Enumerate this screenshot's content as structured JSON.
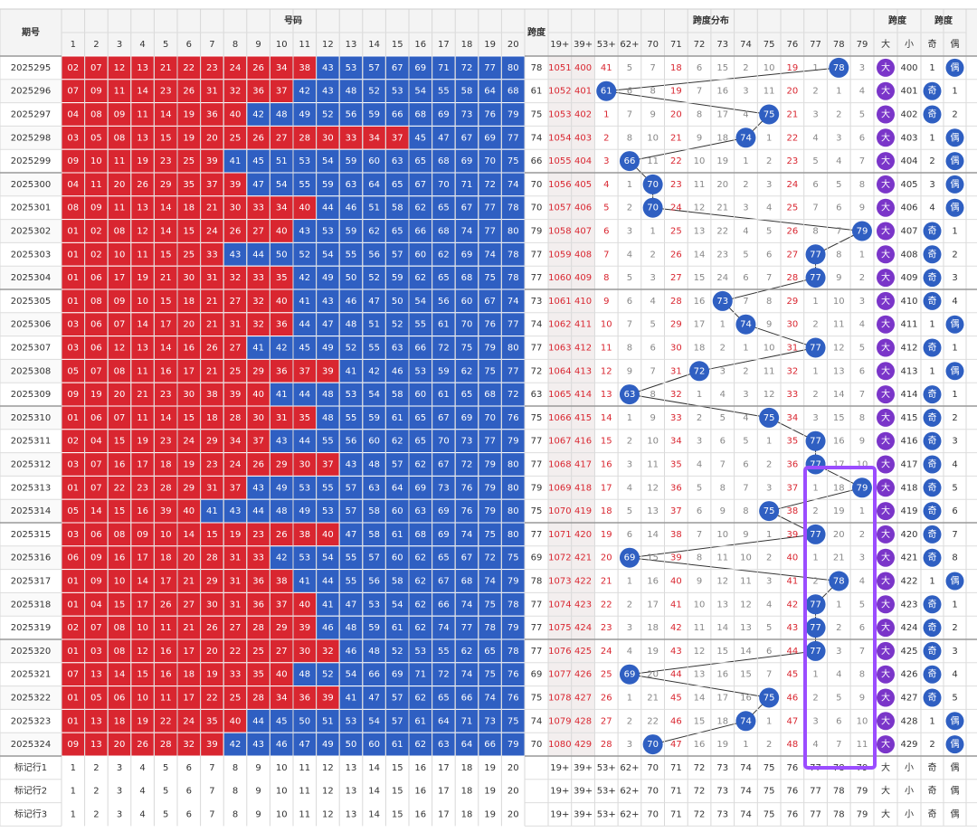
{
  "header": {
    "issue": "期号",
    "numbers": "号码",
    "span": "跨度",
    "dist": "跨度分布",
    "bigsmall": "跨度",
    "oddeven": "跨度",
    "num_cols": [
      1,
      2,
      3,
      4,
      5,
      6,
      7,
      8,
      9,
      10,
      11,
      12,
      13,
      14,
      15,
      16,
      17,
      18,
      19,
      20
    ],
    "dist_cols": [
      "19+",
      "39+",
      "53+",
      "62+",
      "70",
      "71",
      "72",
      "73",
      "74",
      "75",
      "76",
      "77",
      "78",
      "79"
    ],
    "bs_cols": [
      "大",
      "小"
    ],
    "oe_cols": [
      "奇",
      "偶"
    ]
  },
  "rows": [
    {
      "issue": "2025295",
      "numbers": [
        "02",
        "07",
        "12",
        "13",
        "21",
        "22",
        "23",
        "24",
        "26",
        "34",
        "38",
        "43",
        "53",
        "57",
        "67",
        "69",
        "71",
        "72",
        "77",
        "80"
      ],
      "span": 78,
      "dist": [
        1051,
        400,
        41,
        5,
        7,
        18,
        6,
        15,
        2,
        10,
        19,
        1,
        78,
        3
      ],
      "big": "大",
      "small": 400,
      "odd": 1,
      "even": "偶"
    },
    {
      "issue": "2025296",
      "numbers": [
        "07",
        "09",
        "11",
        "14",
        "23",
        "26",
        "31",
        "32",
        "36",
        "37",
        "42",
        "43",
        "48",
        "52",
        "53",
        "54",
        "55",
        "58",
        "64",
        "68"
      ],
      "span": 61,
      "dist": [
        1052,
        401,
        61,
        6,
        8,
        19,
        7,
        16,
        3,
        11,
        20,
        2,
        1,
        4
      ],
      "big": "大",
      "small": 401,
      "odd": "奇",
      "even": 1
    },
    {
      "issue": "2025297",
      "numbers": [
        "04",
        "08",
        "09",
        "11",
        "14",
        "19",
        "36",
        "40",
        "42",
        "48",
        "49",
        "52",
        "56",
        "59",
        "66",
        "68",
        "69",
        "73",
        "76",
        "79"
      ],
      "span": 75,
      "dist": [
        1053,
        402,
        1,
        7,
        9,
        20,
        8,
        17,
        4,
        75,
        21,
        3,
        2,
        5
      ],
      "big": "大",
      "small": 402,
      "odd": "奇",
      "even": 2
    },
    {
      "issue": "2025298",
      "numbers": [
        "03",
        "05",
        "08",
        "13",
        "15",
        "19",
        "20",
        "25",
        "26",
        "27",
        "28",
        "30",
        "33",
        "34",
        "37",
        "45",
        "47",
        "67",
        "69",
        "77"
      ],
      "span": 74,
      "dist": [
        1054,
        403,
        2,
        8,
        10,
        21,
        9,
        18,
        74,
        1,
        22,
        4,
        3,
        6
      ],
      "big": "大",
      "small": 403,
      "odd": 1,
      "even": "偶"
    },
    {
      "issue": "2025299",
      "numbers": [
        "09",
        "10",
        "11",
        "19",
        "23",
        "25",
        "39",
        "41",
        "45",
        "51",
        "53",
        "54",
        "59",
        "60",
        "63",
        "65",
        "68",
        "69",
        "70",
        "75"
      ],
      "span": 66,
      "dist": [
        1055,
        404,
        3,
        66,
        11,
        22,
        10,
        19,
        1,
        2,
        23,
        5,
        4,
        7
      ],
      "big": "大",
      "small": 404,
      "odd": 2,
      "even": "偶"
    },
    {
      "issue": "2025300",
      "numbers": [
        "04",
        "11",
        "20",
        "26",
        "29",
        "35",
        "37",
        "39",
        "47",
        "54",
        "55",
        "59",
        "63",
        "64",
        "65",
        "67",
        "70",
        "71",
        "72",
        "74"
      ],
      "span": 70,
      "dist": [
        1056,
        405,
        4,
        1,
        70,
        23,
        11,
        20,
        2,
        3,
        24,
        6,
        5,
        8
      ],
      "big": "大",
      "small": 405,
      "odd": 3,
      "even": "偶"
    },
    {
      "issue": "2025301",
      "numbers": [
        "08",
        "09",
        "11",
        "13",
        "14",
        "18",
        "21",
        "30",
        "33",
        "34",
        "40",
        "44",
        "46",
        "51",
        "58",
        "62",
        "65",
        "67",
        "77",
        "78"
      ],
      "span": 70,
      "dist": [
        1057,
        406,
        5,
        2,
        70,
        24,
        12,
        21,
        3,
        4,
        25,
        7,
        6,
        9
      ],
      "big": "大",
      "small": 406,
      "odd": 4,
      "even": "偶"
    },
    {
      "issue": "2025302",
      "numbers": [
        "01",
        "02",
        "08",
        "12",
        "14",
        "15",
        "24",
        "26",
        "27",
        "40",
        "43",
        "53",
        "59",
        "62",
        "65",
        "66",
        "68",
        "74",
        "77",
        "80"
      ],
      "span": 79,
      "dist": [
        1058,
        407,
        6,
        3,
        1,
        25,
        13,
        22,
        4,
        5,
        26,
        8,
        7,
        79
      ],
      "big": "大",
      "small": 407,
      "odd": "奇",
      "even": 1
    },
    {
      "issue": "2025303",
      "numbers": [
        "01",
        "02",
        "10",
        "11",
        "15",
        "25",
        "33",
        "43",
        "44",
        "50",
        "52",
        "54",
        "55",
        "56",
        "57",
        "60",
        "62",
        "69",
        "74",
        "78"
      ],
      "span": 77,
      "dist": [
        1059,
        408,
        7,
        4,
        2,
        26,
        14,
        23,
        5,
        6,
        27,
        77,
        8,
        1
      ],
      "big": "大",
      "small": 408,
      "odd": "奇",
      "even": 2
    },
    {
      "issue": "2025304",
      "numbers": [
        "01",
        "06",
        "17",
        "19",
        "21",
        "30",
        "31",
        "32",
        "33",
        "35",
        "42",
        "49",
        "50",
        "52",
        "59",
        "62",
        "65",
        "68",
        "75",
        "78"
      ],
      "span": 77,
      "dist": [
        1060,
        409,
        8,
        5,
        3,
        27,
        15,
        24,
        6,
        7,
        28,
        77,
        9,
        2
      ],
      "big": "大",
      "small": 409,
      "odd": "奇",
      "even": 3
    },
    {
      "issue": "2025305",
      "numbers": [
        "01",
        "08",
        "09",
        "10",
        "15",
        "18",
        "21",
        "27",
        "32",
        "40",
        "41",
        "43",
        "46",
        "47",
        "50",
        "54",
        "56",
        "60",
        "67",
        "74"
      ],
      "span": 73,
      "dist": [
        1061,
        410,
        9,
        6,
        4,
        28,
        16,
        73,
        7,
        8,
        29,
        1,
        10,
        3
      ],
      "big": "大",
      "small": 410,
      "odd": "奇",
      "even": 4
    },
    {
      "issue": "2025306",
      "numbers": [
        "03",
        "06",
        "07",
        "14",
        "17",
        "20",
        "21",
        "31",
        "32",
        "36",
        "44",
        "47",
        "48",
        "51",
        "52",
        "55",
        "61",
        "70",
        "76",
        "77"
      ],
      "span": 74,
      "dist": [
        1062,
        411,
        10,
        7,
        5,
        29,
        17,
        1,
        74,
        9,
        30,
        2,
        11,
        4
      ],
      "big": "大",
      "small": 411,
      "odd": 1,
      "even": "偶"
    },
    {
      "issue": "2025307",
      "numbers": [
        "03",
        "06",
        "12",
        "13",
        "14",
        "16",
        "26",
        "27",
        "41",
        "42",
        "45",
        "49",
        "52",
        "55",
        "63",
        "66",
        "72",
        "75",
        "79",
        "80"
      ],
      "span": 77,
      "dist": [
        1063,
        412,
        11,
        8,
        6,
        30,
        18,
        2,
        1,
        10,
        31,
        77,
        12,
        5
      ],
      "big": "大",
      "small": 412,
      "odd": "奇",
      "even": 1
    },
    {
      "issue": "2025308",
      "numbers": [
        "05",
        "07",
        "08",
        "11",
        "16",
        "17",
        "21",
        "25",
        "29",
        "36",
        "37",
        "39",
        "41",
        "42",
        "46",
        "53",
        "59",
        "62",
        "75",
        "77"
      ],
      "span": 72,
      "dist": [
        1064,
        413,
        12,
        9,
        7,
        31,
        72,
        3,
        2,
        11,
        32,
        1,
        13,
        6
      ],
      "big": "大",
      "small": 413,
      "odd": 1,
      "even": "偶"
    },
    {
      "issue": "2025309",
      "numbers": [
        "09",
        "19",
        "20",
        "21",
        "23",
        "30",
        "38",
        "39",
        "40",
        "41",
        "44",
        "48",
        "53",
        "54",
        "58",
        "60",
        "61",
        "65",
        "68",
        "72"
      ],
      "span": 63,
      "dist": [
        1065,
        414,
        13,
        63,
        8,
        32,
        1,
        4,
        3,
        12,
        33,
        2,
        14,
        7
      ],
      "big": "大",
      "small": 414,
      "odd": "奇",
      "even": 1
    },
    {
      "issue": "2025310",
      "numbers": [
        "01",
        "06",
        "07",
        "11",
        "14",
        "15",
        "18",
        "28",
        "30",
        "31",
        "35",
        "48",
        "55",
        "59",
        "61",
        "65",
        "67",
        "69",
        "70",
        "76"
      ],
      "span": 75,
      "dist": [
        1066,
        415,
        14,
        1,
        9,
        33,
        2,
        5,
        4,
        75,
        34,
        3,
        15,
        8
      ],
      "big": "大",
      "small": 415,
      "odd": "奇",
      "even": 2
    },
    {
      "issue": "2025311",
      "numbers": [
        "02",
        "04",
        "15",
        "19",
        "23",
        "24",
        "29",
        "34",
        "37",
        "43",
        "44",
        "55",
        "56",
        "60",
        "62",
        "65",
        "70",
        "73",
        "77",
        "79"
      ],
      "span": 77,
      "dist": [
        1067,
        416,
        15,
        2,
        10,
        34,
        3,
        6,
        5,
        1,
        35,
        77,
        16,
        9
      ],
      "big": "大",
      "small": 416,
      "odd": "奇",
      "even": 3
    },
    {
      "issue": "2025312",
      "numbers": [
        "03",
        "07",
        "16",
        "17",
        "18",
        "19",
        "23",
        "24",
        "26",
        "29",
        "30",
        "37",
        "43",
        "48",
        "57",
        "62",
        "67",
        "72",
        "79",
        "80"
      ],
      "span": 77,
      "dist": [
        1068,
        417,
        16,
        3,
        11,
        35,
        4,
        7,
        6,
        2,
        36,
        77,
        17,
        10
      ],
      "big": "大",
      "small": 417,
      "odd": "奇",
      "even": 4
    },
    {
      "issue": "2025313",
      "numbers": [
        "01",
        "07",
        "22",
        "23",
        "28",
        "29",
        "31",
        "37",
        "43",
        "49",
        "53",
        "55",
        "57",
        "63",
        "64",
        "69",
        "73",
        "76",
        "79",
        "80"
      ],
      "span": 79,
      "dist": [
        1069,
        418,
        17,
        4,
        12,
        36,
        5,
        8,
        7,
        3,
        37,
        1,
        18,
        79
      ],
      "big": "大",
      "small": 418,
      "odd": "奇",
      "even": 5
    },
    {
      "issue": "2025314",
      "numbers": [
        "05",
        "14",
        "15",
        "16",
        "39",
        "40",
        "41",
        "43",
        "44",
        "48",
        "49",
        "53",
        "57",
        "58",
        "60",
        "63",
        "69",
        "76",
        "79",
        "80"
      ],
      "span": 75,
      "dist": [
        1070,
        419,
        18,
        5,
        13,
        37,
        6,
        9,
        8,
        75,
        38,
        2,
        19,
        1
      ],
      "big": "大",
      "small": 419,
      "odd": "奇",
      "even": 6
    },
    {
      "issue": "2025315",
      "numbers": [
        "03",
        "06",
        "08",
        "09",
        "10",
        "14",
        "15",
        "19",
        "23",
        "26",
        "38",
        "40",
        "47",
        "58",
        "61",
        "68",
        "69",
        "74",
        "75",
        "80"
      ],
      "span": 77,
      "dist": [
        1071,
        420,
        19,
        6,
        14,
        38,
        7,
        10,
        9,
        1,
        39,
        77,
        20,
        2
      ],
      "big": "大",
      "small": 420,
      "odd": "奇",
      "even": 7
    },
    {
      "issue": "2025316",
      "numbers": [
        "06",
        "09",
        "16",
        "17",
        "18",
        "20",
        "28",
        "31",
        "33",
        "42",
        "53",
        "54",
        "55",
        "57",
        "60",
        "62",
        "65",
        "67",
        "72",
        "75"
      ],
      "span": 69,
      "dist": [
        1072,
        421,
        20,
        69,
        15,
        39,
        8,
        11,
        10,
        2,
        40,
        1,
        21,
        3
      ],
      "big": "大",
      "small": 421,
      "odd": "奇",
      "even": 8
    },
    {
      "issue": "2025317",
      "numbers": [
        "01",
        "09",
        "10",
        "14",
        "17",
        "21",
        "29",
        "31",
        "36",
        "38",
        "41",
        "44",
        "55",
        "56",
        "58",
        "62",
        "67",
        "68",
        "74",
        "79"
      ],
      "span": 78,
      "dist": [
        1073,
        422,
        21,
        1,
        16,
        40,
        9,
        12,
        11,
        3,
        41,
        2,
        78,
        4
      ],
      "big": "大",
      "small": 422,
      "odd": 1,
      "even": "偶"
    },
    {
      "issue": "2025318",
      "numbers": [
        "01",
        "04",
        "15",
        "17",
        "26",
        "27",
        "30",
        "31",
        "36",
        "37",
        "40",
        "41",
        "47",
        "53",
        "54",
        "62",
        "66",
        "74",
        "75",
        "78"
      ],
      "span": 77,
      "dist": [
        1074,
        423,
        22,
        2,
        17,
        41,
        10,
        13,
        12,
        4,
        42,
        77,
        1,
        5
      ],
      "big": "大",
      "small": 423,
      "odd": "奇",
      "even": 1
    },
    {
      "issue": "2025319",
      "numbers": [
        "02",
        "07",
        "08",
        "10",
        "11",
        "21",
        "26",
        "27",
        "28",
        "29",
        "39",
        "46",
        "48",
        "59",
        "61",
        "62",
        "74",
        "77",
        "78",
        "79"
      ],
      "span": 77,
      "dist": [
        1075,
        424,
        23,
        3,
        18,
        42,
        11,
        14,
        13,
        5,
        43,
        77,
        2,
        6
      ],
      "big": "大",
      "small": 424,
      "odd": "奇",
      "even": 2
    },
    {
      "issue": "2025320",
      "numbers": [
        "01",
        "03",
        "08",
        "12",
        "16",
        "17",
        "20",
        "22",
        "25",
        "27",
        "30",
        "32",
        "46",
        "48",
        "52",
        "53",
        "55",
        "62",
        "65",
        "78"
      ],
      "span": 77,
      "dist": [
        1076,
        425,
        24,
        4,
        19,
        43,
        12,
        15,
        14,
        6,
        44,
        77,
        3,
        7
      ],
      "big": "大",
      "small": 425,
      "odd": "奇",
      "even": 3
    },
    {
      "issue": "2025321",
      "numbers": [
        "07",
        "13",
        "14",
        "15",
        "16",
        "18",
        "19",
        "33",
        "35",
        "40",
        "48",
        "52",
        "54",
        "66",
        "69",
        "71",
        "72",
        "74",
        "75",
        "76"
      ],
      "span": 69,
      "dist": [
        1077,
        426,
        25,
        69,
        20,
        44,
        13,
        16,
        15,
        7,
        45,
        1,
        4,
        8
      ],
      "big": "大",
      "small": 426,
      "odd": "奇",
      "even": 4
    },
    {
      "issue": "2025322",
      "numbers": [
        "01",
        "05",
        "06",
        "10",
        "11",
        "17",
        "22",
        "25",
        "28",
        "34",
        "36",
        "39",
        "41",
        "47",
        "57",
        "62",
        "65",
        "66",
        "74",
        "76"
      ],
      "span": 75,
      "dist": [
        1078,
        427,
        26,
        1,
        21,
        45,
        14,
        17,
        16,
        75,
        46,
        2,
        5,
        9
      ],
      "big": "大",
      "small": 427,
      "odd": "奇",
      "even": 5
    },
    {
      "issue": "2025323",
      "numbers": [
        "01",
        "13",
        "18",
        "19",
        "22",
        "24",
        "35",
        "40",
        "44",
        "45",
        "50",
        "51",
        "53",
        "54",
        "57",
        "61",
        "64",
        "71",
        "73",
        "75"
      ],
      "span": 74,
      "dist": [
        1079,
        428,
        27,
        2,
        22,
        46,
        15,
        18,
        74,
        1,
        47,
        3,
        6,
        10
      ],
      "big": "大",
      "small": 428,
      "odd": 1,
      "even": "偶"
    },
    {
      "issue": "2025324",
      "numbers": [
        "09",
        "13",
        "20",
        "26",
        "28",
        "32",
        "39",
        "42",
        "43",
        "46",
        "47",
        "49",
        "50",
        "60",
        "61",
        "62",
        "63",
        "64",
        "66",
        "79"
      ],
      "span": 70,
      "dist": [
        1080,
        429,
        28,
        3,
        70,
        47,
        16,
        19,
        1,
        2,
        48,
        4,
        7,
        11
      ],
      "big": "大",
      "small": 429,
      "odd": 2,
      "even": "偶"
    }
  ],
  "footer": [
    "标记行1",
    "标记行2",
    "标记行3"
  ]
}
